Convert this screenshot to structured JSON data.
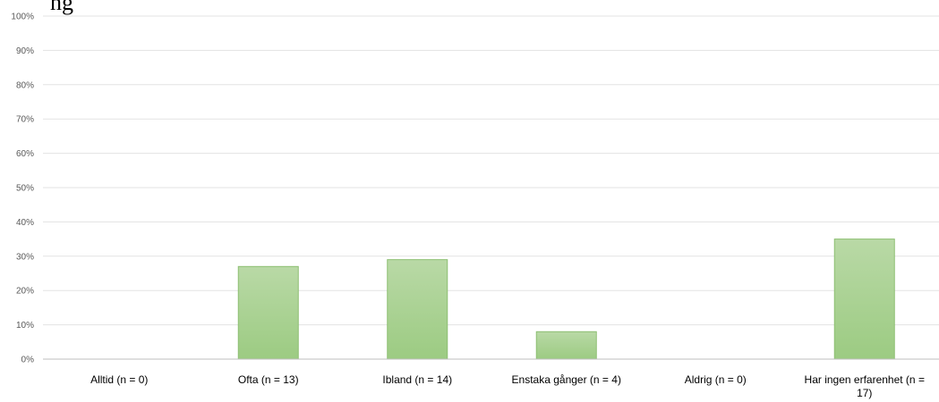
{
  "title_fragment": "ng",
  "chart_data": {
    "type": "bar",
    "categories": [
      [
        "Alltid (n = 0)"
      ],
      [
        "Ofta (n = 13)"
      ],
      [
        "Ibland (n = 14)"
      ],
      [
        "Enstaka gånger (n = 4)"
      ],
      [
        "Aldrig (n = 0)"
      ],
      [
        "Har ingen erfarenhet (n =",
        "17)"
      ]
    ],
    "values": [
      0,
      27,
      29,
      8,
      0,
      35
    ],
    "unit": "%",
    "ylim": [
      0,
      100
    ],
    "yticks": [
      "0%",
      "10%",
      "20%",
      "30%",
      "40%",
      "50%",
      "60%",
      "70%",
      "80%",
      "90%",
      "100%"
    ],
    "grid": true,
    "legend": "none",
    "colors": {
      "bar_top": "#b9d9a6",
      "bar_bottom": "#9ccb82",
      "bar_stroke": "#8dbf72",
      "grid": "#e3e3e3",
      "axis": "#bfbfbf"
    }
  }
}
